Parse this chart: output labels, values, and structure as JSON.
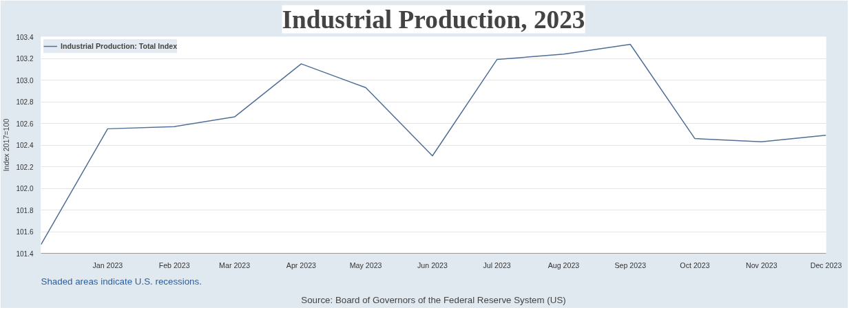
{
  "chart_data": {
    "type": "line",
    "title": "Industrial Production, 2023",
    "ylabel": "Index 2017=100",
    "x": [
      "2022-12",
      "2023-01",
      "2023-02",
      "2023-03",
      "2023-04",
      "2023-05",
      "2023-06",
      "2023-07",
      "2023-08",
      "2023-09",
      "2023-10",
      "2023-11",
      "2023-12"
    ],
    "series": [
      {
        "name": "Industrial Production: Total Index",
        "color": "#4e6e96",
        "values": [
          101.48,
          102.55,
          102.57,
          102.66,
          103.15,
          102.93,
          102.3,
          103.19,
          103.24,
          103.33,
          102.46,
          102.43,
          102.49
        ]
      }
    ],
    "xlim": [
      "2022-12",
      "2023-12"
    ],
    "xticks": [
      {
        "value": "2023-01",
        "label": "Jan 2023"
      },
      {
        "value": "2023-02",
        "label": "Feb 2023"
      },
      {
        "value": "2023-03",
        "label": "Mar 2023"
      },
      {
        "value": "2023-04",
        "label": "Apr 2023"
      },
      {
        "value": "2023-05",
        "label": "May 2023"
      },
      {
        "value": "2023-06",
        "label": "Jun 2023"
      },
      {
        "value": "2023-07",
        "label": "Jul 2023"
      },
      {
        "value": "2023-08",
        "label": "Aug 2023"
      },
      {
        "value": "2023-09",
        "label": "Sep 2023"
      },
      {
        "value": "2023-10",
        "label": "Oct 2023"
      },
      {
        "value": "2023-11",
        "label": "Nov 2023"
      },
      {
        "value": "2023-12",
        "label": "Dec 2023"
      }
    ],
    "ylim": [
      101.4,
      103.4
    ],
    "yticks": [
      101.4,
      101.6,
      101.8,
      {
        "value": 102.0,
        "label": "102.0"
      },
      102.2,
      102.4,
      102.6,
      102.8,
      {
        "value": 103.0,
        "label": "103.0"
      },
      103.2,
      103.4
    ],
    "grid": "y",
    "legend": "top left",
    "marker": "none",
    "line_style": "solid",
    "annotations": [
      "Shaded areas indicate U.S. recessions.",
      "Source: Board of Governors of the Federal Reserve System (US)"
    ]
  }
}
